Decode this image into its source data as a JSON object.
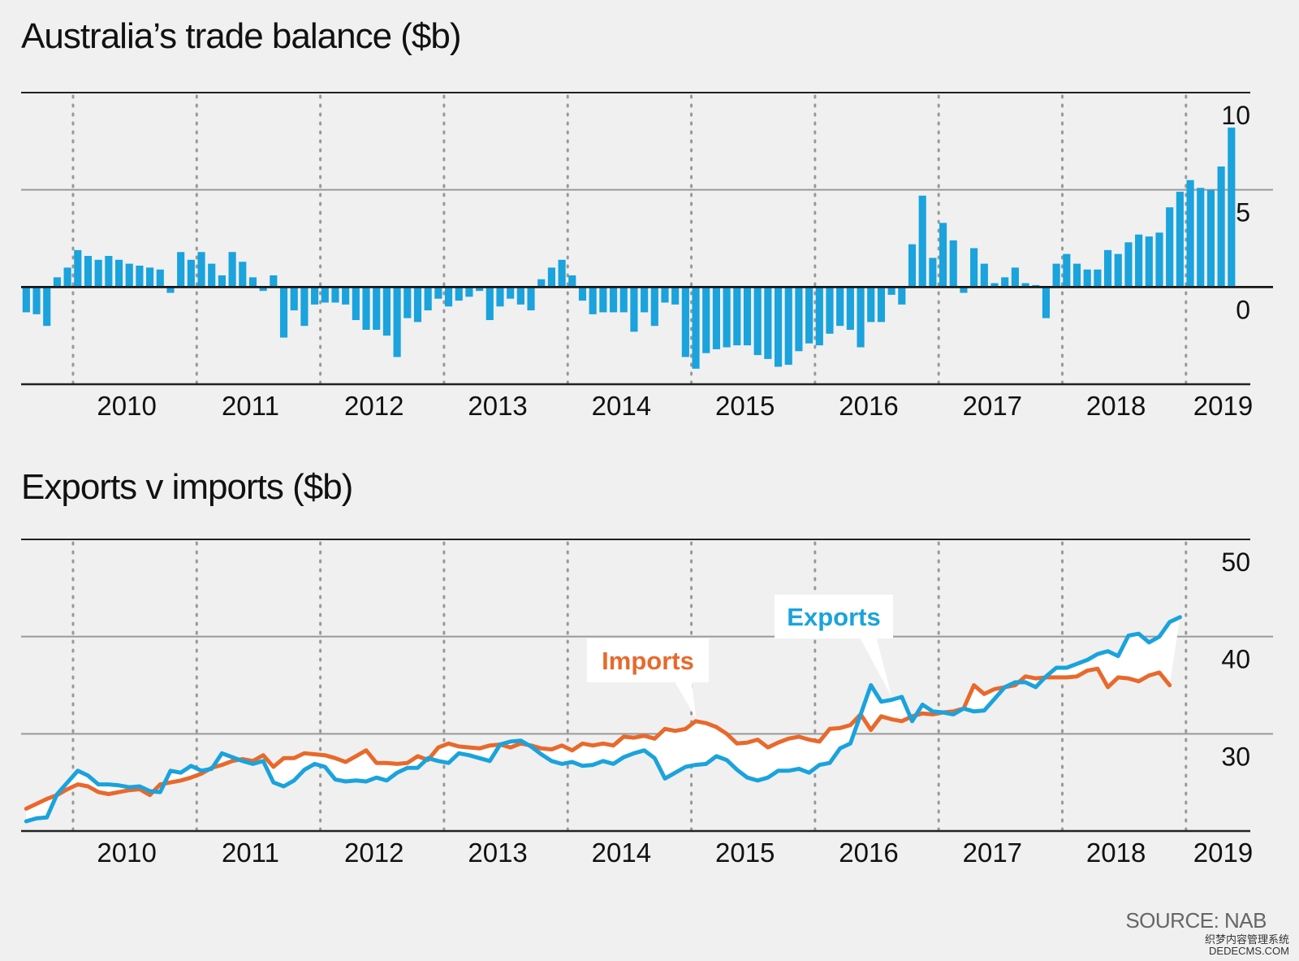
{
  "chart_data": [
    {
      "type": "bar",
      "title": "Australia’s trade balance ($b)",
      "ylim": [
        -5,
        10
      ],
      "yticks": [
        10,
        5,
        0
      ],
      "grid": "horizontal solid at 0/5/10, dotted vertical year separators",
      "x_start": 2009.58,
      "x_step": 0.0833,
      "year_labels": [
        "2010",
        "2011",
        "2012",
        "2013",
        "2014",
        "2015",
        "2016",
        "2017",
        "2018",
        "2019"
      ],
      "color": "#1aa3dc",
      "values": [
        -1.3,
        -1.4,
        -2.0,
        0.5,
        1.0,
        1.9,
        1.6,
        1.4,
        1.6,
        1.4,
        1.2,
        1.1,
        1.0,
        0.9,
        -0.3,
        1.8,
        1.4,
        1.8,
        1.2,
        0.6,
        1.8,
        1.3,
        0.5,
        -0.2,
        0.6,
        -2.6,
        -1.2,
        -2.0,
        -0.9,
        -0.8,
        -0.8,
        -0.9,
        -1.7,
        -2.2,
        -2.2,
        -2.5,
        -3.6,
        -1.6,
        -1.8,
        -1.2,
        -0.6,
        -1.0,
        -0.7,
        -0.5,
        -0.2,
        -1.7,
        -1.0,
        -0.6,
        -0.9,
        -1.2,
        0.4,
        1.0,
        1.4,
        0.6,
        -0.7,
        -1.4,
        -1.3,
        -1.3,
        -1.3,
        -2.3,
        -1.3,
        -2.0,
        -0.8,
        -0.9,
        -3.6,
        -4.2,
        -3.4,
        -3.2,
        -3.1,
        -3.0,
        -3.0,
        -3.5,
        -3.7,
        -4.1,
        -4.0,
        -3.3,
        -2.9,
        -3.0,
        -2.4,
        -2.0,
        -2.2,
        -3.1,
        -1.8,
        -1.8,
        -0.4,
        -0.9,
        2.2,
        4.7,
        1.5,
        3.3,
        2.4,
        -0.3,
        2.0,
        1.2,
        0.2,
        0.5,
        1.0,
        0.2,
        0.1,
        -1.6,
        1.2,
        1.7,
        1.2,
        0.9,
        0.9,
        1.9,
        1.7,
        2.3,
        2.7,
        2.6,
        2.8,
        4.1,
        4.9,
        5.5,
        5.1,
        5.0,
        6.2,
        8.2
      ]
    },
    {
      "type": "line",
      "title": "Exports v imports ($b)",
      "ylim": [
        20,
        50
      ],
      "yticks": [
        50,
        40,
        30
      ],
      "grid": "horizontal solid at 30/40/50, dotted vertical year separators",
      "x_start": 2009.58,
      "x_step": 0.0833,
      "year_labels": [
        "2010",
        "2011",
        "2012",
        "2013",
        "2014",
        "2015",
        "2016",
        "2017",
        "2018",
        "2019"
      ],
      "annotations": [
        {
          "text": "Exports",
          "series": "Exports",
          "point_index": 84
        },
        {
          "text": "Imports",
          "series": "Imports",
          "point_index": 65
        }
      ],
      "series": [
        {
          "name": "Exports",
          "color": "#1aa3dc",
          "values": [
            21.0,
            21.3,
            21.4,
            23.8,
            25.0,
            26.2,
            25.7,
            24.8,
            24.8,
            24.7,
            24.5,
            24.6,
            24.1,
            24.0,
            26.2,
            26.0,
            26.7,
            26.2,
            26.4,
            28.0,
            27.6,
            27.2,
            26.9,
            27.2,
            25.0,
            24.6,
            25.2,
            26.3,
            26.9,
            26.6,
            25.3,
            25.1,
            25.2,
            25.1,
            25.5,
            25.2,
            26.0,
            26.5,
            26.5,
            27.5,
            27.2,
            27.0,
            28.0,
            27.8,
            27.5,
            27.2,
            28.9,
            29.2,
            29.3,
            28.7,
            27.9,
            27.2,
            26.9,
            27.1,
            26.7,
            26.8,
            27.2,
            26.9,
            27.6,
            28.0,
            28.3,
            27.5,
            25.4,
            26.0,
            26.6,
            26.8,
            26.9,
            27.7,
            27.3,
            26.3,
            25.5,
            25.2,
            25.5,
            26.2,
            26.2,
            26.4,
            26.0,
            26.8,
            27.0,
            28.5,
            29.0,
            32.0,
            35.0,
            33.3,
            33.5,
            33.8,
            31.3,
            33.0,
            32.3,
            32.2,
            32.0,
            32.6,
            32.3,
            32.4,
            33.6,
            34.8,
            35.3,
            35.3,
            34.8,
            35.9,
            36.8,
            36.8,
            37.2,
            37.6,
            38.2,
            38.5,
            38.0,
            40.1,
            40.3,
            39.4,
            40.0,
            41.5,
            42.0
          ]
        },
        {
          "name": "Imports",
          "color": "#e8692b",
          "values": [
            22.3,
            22.8,
            23.3,
            23.7,
            24.3,
            24.8,
            24.6,
            24.0,
            23.8,
            24.0,
            24.2,
            24.3,
            23.7,
            24.8,
            25.0,
            25.2,
            25.5,
            25.9,
            26.5,
            26.8,
            27.2,
            27.4,
            27.2,
            27.8,
            26.6,
            27.5,
            27.5,
            28.0,
            27.9,
            27.8,
            27.5,
            27.1,
            27.7,
            28.3,
            27.0,
            27.0,
            26.9,
            27.0,
            27.7,
            27.3,
            28.6,
            29.0,
            28.7,
            28.6,
            28.5,
            28.8,
            28.9,
            28.6,
            29.0,
            28.8,
            28.5,
            28.4,
            28.8,
            28.3,
            29.0,
            28.8,
            29.0,
            28.8,
            29.7,
            29.6,
            29.8,
            29.5,
            30.5,
            30.3,
            30.5,
            31.3,
            31.1,
            30.7,
            30.0,
            29.0,
            29.1,
            29.4,
            28.6,
            29.1,
            29.5,
            29.7,
            29.4,
            29.2,
            30.5,
            30.6,
            30.9,
            32.0,
            30.4,
            31.8,
            31.5,
            31.3,
            31.8,
            32.1,
            32.0,
            32.2,
            32.3,
            32.6,
            35.0,
            34.1,
            34.6,
            34.8,
            35.0,
            35.9,
            35.7,
            35.8,
            35.8,
            35.8,
            35.9,
            36.5,
            36.7,
            34.8,
            35.8,
            35.7,
            35.4,
            36.0,
            36.3,
            35.0
          ]
        }
      ]
    }
  ],
  "source": "SOURCE: NAB",
  "watermark": [
    "织梦内容管理系统",
    "DEDECMS.COM"
  ]
}
